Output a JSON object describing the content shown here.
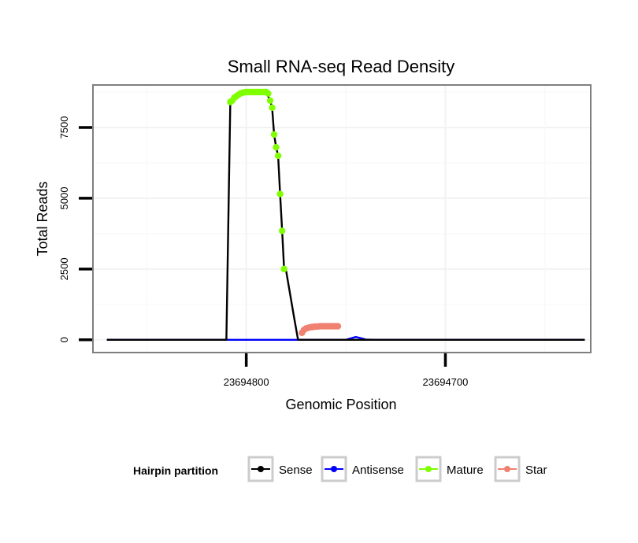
{
  "chart_data": {
    "type": "line",
    "title": "Small RNA-seq Read Density",
    "xlabel": "Genomic Position",
    "ylabel": "Total Reads",
    "x_reversed": true,
    "xlim": [
      23694877,
      23694627
    ],
    "ylim": [
      -450,
      9000
    ],
    "x_ticks": [
      23694800,
      23694700
    ],
    "x_tick_labels": [
      "23694800",
      "23694700"
    ],
    "y_ticks": [
      0,
      2500,
      5000,
      7500
    ],
    "y_tick_labels": [
      "0",
      "2500",
      "5000",
      "7500"
    ],
    "grid": true,
    "legend": {
      "title": "Hairpin partition",
      "placement": "bottom",
      "entries": [
        "Sense",
        "Antisense",
        "Mature",
        "Star"
      ]
    },
    "series": [
      {
        "name": "Sense",
        "color": "#000000",
        "mode": "line",
        "x": [
          23694870,
          23694850,
          23694815,
          23694810,
          23694808,
          23694806,
          23694804,
          23694802,
          23694800,
          23694797,
          23694795,
          23694793,
          23694791,
          23694790,
          23694788,
          23694787,
          23694786,
          23694785,
          23694784,
          23694783,
          23694782,
          23694781,
          23694780,
          23694776,
          23694774,
          23694772,
          23694770,
          23694769,
          23694768,
          23694766,
          23694764,
          23694762,
          23694760,
          23694758,
          23694756,
          23694754,
          23694752,
          23694750,
          23694745,
          23694742,
          23694740,
          23694735,
          23694730,
          23694727,
          23694726,
          23694724,
          23694720,
          23694714,
          23694712,
          23694708,
          23694705,
          23694700,
          23694690,
          23694670,
          23694650,
          23694630
        ],
        "y": [
          0,
          0,
          0,
          0,
          8400,
          8550,
          8650,
          8700,
          8750,
          8750,
          8750,
          8750,
          8750,
          8750,
          8450,
          8200,
          7250,
          6800,
          6500,
          5150,
          3850,
          2500,
          2450,
          800,
          0,
          0,
          0,
          0,
          0,
          0,
          0,
          0,
          0,
          0,
          0,
          0,
          0,
          0,
          0,
          0,
          0,
          0,
          0,
          0,
          0,
          0,
          0,
          0,
          0,
          0,
          0,
          0,
          0,
          0,
          0,
          0
        ]
      },
      {
        "name": "Antisense",
        "color": "#0000ff",
        "mode": "line",
        "x": [
          23694870,
          23694850,
          23694815,
          23694810,
          23694808,
          23694806,
          23694804,
          23694802,
          23694800,
          23694797,
          23694795,
          23694793,
          23694791,
          23694790,
          23694788,
          23694787,
          23694786,
          23694785,
          23694784,
          23694783,
          23694782,
          23694781,
          23694780,
          23694776,
          23694774,
          23694772,
          23694770,
          23694769,
          23694768,
          23694766,
          23694764,
          23694762,
          23694760,
          23694758,
          23694756,
          23694754,
          23694752,
          23694750,
          23694745,
          23694742,
          23694740,
          23694735,
          23694730,
          23694727,
          23694726,
          23694724,
          23694720,
          23694714,
          23694712,
          23694708,
          23694705,
          23694700,
          23694690,
          23694670,
          23694650,
          23694630
        ],
        "y": [
          0,
          0,
          0,
          0,
          0,
          0,
          0,
          0,
          0,
          0,
          0,
          0,
          0,
          0,
          0,
          0,
          0,
          0,
          0,
          0,
          0,
          0,
          0,
          0,
          0,
          0,
          0,
          0,
          0,
          0,
          0,
          0,
          0,
          0,
          0,
          0,
          0,
          0,
          100,
          50,
          10,
          0,
          0,
          0,
          0,
          0,
          0,
          0,
          0,
          0,
          0,
          0,
          0,
          0,
          0,
          0
        ]
      },
      {
        "name": "Mature",
        "color": "#7fff00",
        "mode": "points",
        "x": [
          23694808,
          23694807,
          23694806,
          23694805,
          23694804,
          23694803,
          23694802,
          23694801,
          23694800,
          23694799,
          23694798,
          23694797,
          23694796,
          23694795,
          23694794,
          23694793,
          23694792,
          23694791,
          23694790,
          23694789,
          23694788,
          23694787,
          23694786,
          23694785,
          23694784,
          23694783,
          23694782,
          23694781
        ],
        "y": [
          8400,
          8450,
          8550,
          8600,
          8650,
          8700,
          8720,
          8740,
          8750,
          8750,
          8750,
          8750,
          8750,
          8750,
          8750,
          8750,
          8750,
          8750,
          8750,
          8700,
          8450,
          8200,
          7250,
          6800,
          6500,
          5150,
          3850,
          2500
        ]
      },
      {
        "name": "Star",
        "color": "#f08070",
        "mode": "points",
        "x": [
          23694772,
          23694771,
          23694770,
          23694769,
          23694768,
          23694767,
          23694766,
          23694765,
          23694764,
          23694763,
          23694762,
          23694761,
          23694760,
          23694759,
          23694758,
          23694757,
          23694756,
          23694755,
          23694754
        ],
        "y": [
          250,
          350,
          400,
          420,
          440,
          450,
          460,
          470,
          470,
          480,
          480,
          480,
          480,
          480,
          480,
          480,
          480,
          480,
          480
        ]
      }
    ]
  }
}
